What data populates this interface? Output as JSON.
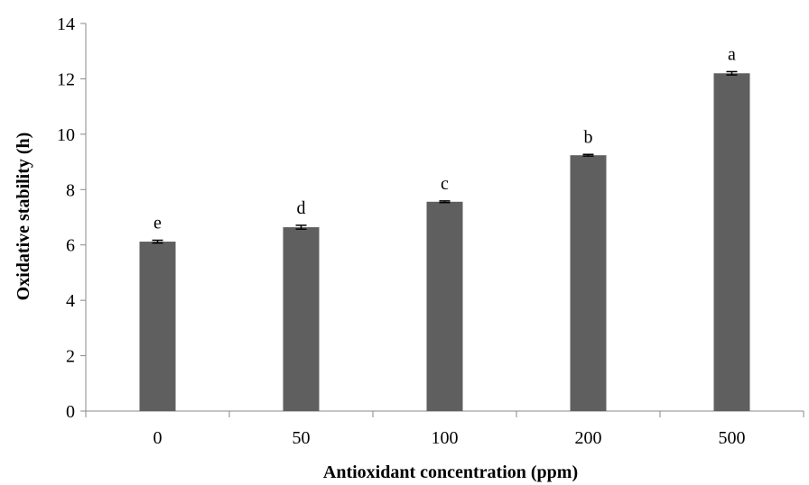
{
  "chart_data": {
    "type": "bar",
    "xlabel": "Antioxidant concentration (ppm)",
    "ylabel": "Oxidative stability (h)",
    "categories": [
      "0",
      "50",
      "100",
      "200",
      "500"
    ],
    "values": [
      6.12,
      6.64,
      7.56,
      9.24,
      12.2
    ],
    "errors": [
      0.05,
      0.07,
      0.03,
      0.03,
      0.06
    ],
    "significance_labels": [
      "e",
      "d",
      "c",
      "b",
      "a"
    ],
    "ylim": [
      0,
      14
    ],
    "yticks": [
      "0",
      "2",
      "4",
      "6",
      "8",
      "10",
      "12",
      "14"
    ],
    "grid": false,
    "legend": "none",
    "bar_color": "#5f5f5f"
  }
}
